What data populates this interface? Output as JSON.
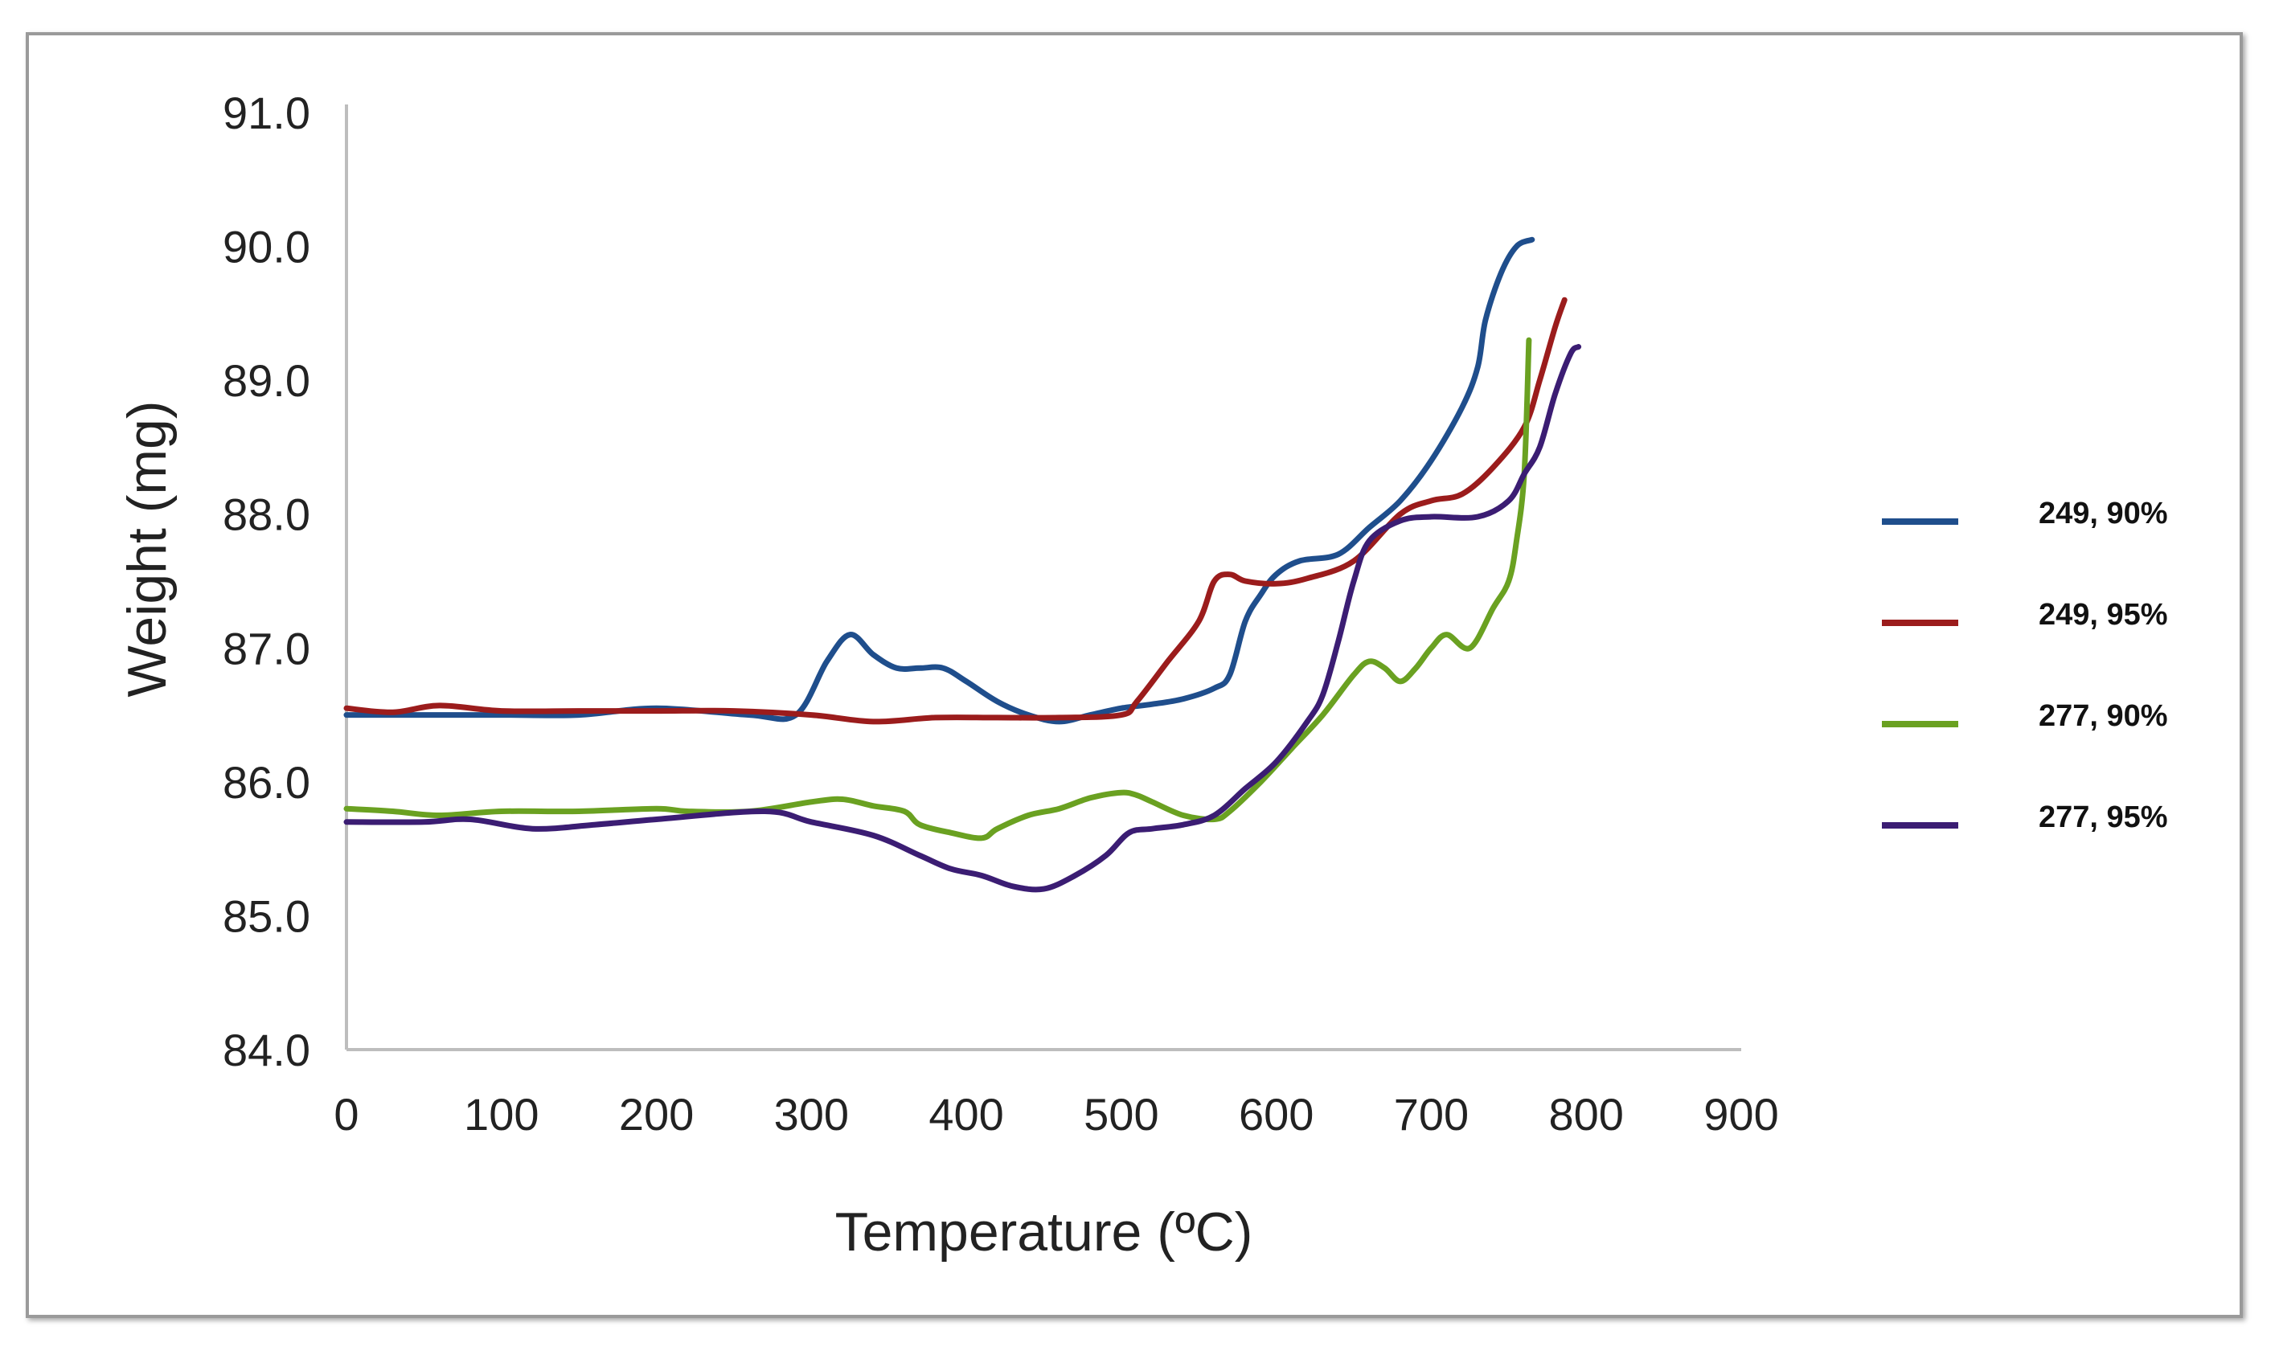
{
  "chart_data": {
    "type": "line",
    "title": "",
    "xlabel": "Temperature  (ºC)",
    "ylabel": "Weight (mg)",
    "xlim": [
      0,
      900
    ],
    "ylim": [
      84.0,
      91.0
    ],
    "xticks": [
      "0",
      "100",
      "200",
      "300",
      "400",
      "500",
      "600",
      "700",
      "800",
      "900"
    ],
    "yticks": [
      "84.0",
      "85.0",
      "86.0",
      "87.0",
      "88.0",
      "89.0",
      "90.0",
      "91.0"
    ],
    "grid": false,
    "legend_position": "right",
    "series": [
      {
        "name": "249, 90%",
        "color": "#1f4e8c",
        "points": [
          [
            0,
            86.5
          ],
          [
            50,
            86.5
          ],
          [
            100,
            86.5
          ],
          [
            150,
            86.5
          ],
          [
            200,
            86.55
          ],
          [
            260,
            86.5
          ],
          [
            290,
            86.5
          ],
          [
            310,
            86.9
          ],
          [
            325,
            87.1
          ],
          [
            340,
            86.95
          ],
          [
            355,
            86.85
          ],
          [
            370,
            86.85
          ],
          [
            385,
            86.85
          ],
          [
            400,
            86.75
          ],
          [
            420,
            86.6
          ],
          [
            440,
            86.5
          ],
          [
            460,
            86.45
          ],
          [
            480,
            86.5
          ],
          [
            500,
            86.55
          ],
          [
            520,
            86.58
          ],
          [
            540,
            86.62
          ],
          [
            560,
            86.7
          ],
          [
            570,
            86.8
          ],
          [
            580,
            87.2
          ],
          [
            590,
            87.4
          ],
          [
            600,
            87.55
          ],
          [
            615,
            87.65
          ],
          [
            640,
            87.7
          ],
          [
            660,
            87.9
          ],
          [
            680,
            88.1
          ],
          [
            700,
            88.4
          ],
          [
            720,
            88.8
          ],
          [
            730,
            89.1
          ],
          [
            735,
            89.45
          ],
          [
            745,
            89.8
          ],
          [
            755,
            90.0
          ],
          [
            765,
            90.05
          ]
        ]
      },
      {
        "name": "249, 95%",
        "color": "#9b1c1c",
        "points": [
          [
            0,
            86.55
          ],
          [
            30,
            86.52
          ],
          [
            60,
            86.57
          ],
          [
            100,
            86.53
          ],
          [
            150,
            86.53
          ],
          [
            200,
            86.53
          ],
          [
            250,
            86.53
          ],
          [
            300,
            86.5
          ],
          [
            340,
            86.45
          ],
          [
            380,
            86.48
          ],
          [
            420,
            86.48
          ],
          [
            460,
            86.48
          ],
          [
            500,
            86.5
          ],
          [
            510,
            86.6
          ],
          [
            530,
            86.9
          ],
          [
            550,
            87.2
          ],
          [
            560,
            87.5
          ],
          [
            570,
            87.55
          ],
          [
            580,
            87.5
          ],
          [
            600,
            87.48
          ],
          [
            620,
            87.52
          ],
          [
            650,
            87.65
          ],
          [
            680,
            88.0
          ],
          [
            700,
            88.1
          ],
          [
            720,
            88.15
          ],
          [
            740,
            88.35
          ],
          [
            760,
            88.65
          ],
          [
            770,
            89.0
          ],
          [
            780,
            89.4
          ],
          [
            786,
            89.6
          ]
        ]
      },
      {
        "name": "277, 90%",
        "color": "#6aa121",
        "points": [
          [
            0,
            85.8
          ],
          [
            30,
            85.78
          ],
          [
            60,
            85.75
          ],
          [
            100,
            85.78
          ],
          [
            150,
            85.78
          ],
          [
            200,
            85.8
          ],
          [
            220,
            85.78
          ],
          [
            260,
            85.78
          ],
          [
            300,
            85.85
          ],
          [
            320,
            85.87
          ],
          [
            340,
            85.82
          ],
          [
            360,
            85.78
          ],
          [
            370,
            85.68
          ],
          [
            390,
            85.62
          ],
          [
            410,
            85.58
          ],
          [
            420,
            85.65
          ],
          [
            440,
            85.75
          ],
          [
            460,
            85.8
          ],
          [
            480,
            85.88
          ],
          [
            500,
            85.92
          ],
          [
            510,
            85.9
          ],
          [
            520,
            85.85
          ],
          [
            540,
            85.75
          ],
          [
            560,
            85.72
          ],
          [
            570,
            85.78
          ],
          [
            590,
            86.0
          ],
          [
            610,
            86.25
          ],
          [
            630,
            86.5
          ],
          [
            650,
            86.8
          ],
          [
            660,
            86.9
          ],
          [
            670,
            86.85
          ],
          [
            680,
            86.75
          ],
          [
            690,
            86.85
          ],
          [
            700,
            87.0
          ],
          [
            710,
            87.1
          ],
          [
            725,
            87.0
          ],
          [
            740,
            87.3
          ],
          [
            750,
            87.5
          ],
          [
            755,
            87.8
          ],
          [
            760,
            88.3
          ],
          [
            763,
            89.3
          ]
        ]
      },
      {
        "name": "277, 95%",
        "color": "#3b1d73",
        "points": [
          [
            0,
            85.7
          ],
          [
            50,
            85.7
          ],
          [
            80,
            85.72
          ],
          [
            120,
            85.65
          ],
          [
            160,
            85.68
          ],
          [
            200,
            85.72
          ],
          [
            270,
            85.78
          ],
          [
            300,
            85.7
          ],
          [
            340,
            85.6
          ],
          [
            370,
            85.45
          ],
          [
            390,
            85.35
          ],
          [
            410,
            85.3
          ],
          [
            430,
            85.22
          ],
          [
            450,
            85.2
          ],
          [
            470,
            85.3
          ],
          [
            490,
            85.45
          ],
          [
            505,
            85.62
          ],
          [
            520,
            85.65
          ],
          [
            540,
            85.68
          ],
          [
            560,
            85.75
          ],
          [
            580,
            85.95
          ],
          [
            600,
            86.15
          ],
          [
            620,
            86.45
          ],
          [
            630,
            86.65
          ],
          [
            640,
            87.05
          ],
          [
            650,
            87.5
          ],
          [
            660,
            87.8
          ],
          [
            680,
            87.95
          ],
          [
            700,
            87.98
          ],
          [
            730,
            87.98
          ],
          [
            750,
            88.1
          ],
          [
            760,
            88.3
          ],
          [
            770,
            88.5
          ],
          [
            780,
            88.9
          ],
          [
            790,
            89.2
          ],
          [
            795,
            89.25
          ]
        ]
      }
    ]
  }
}
